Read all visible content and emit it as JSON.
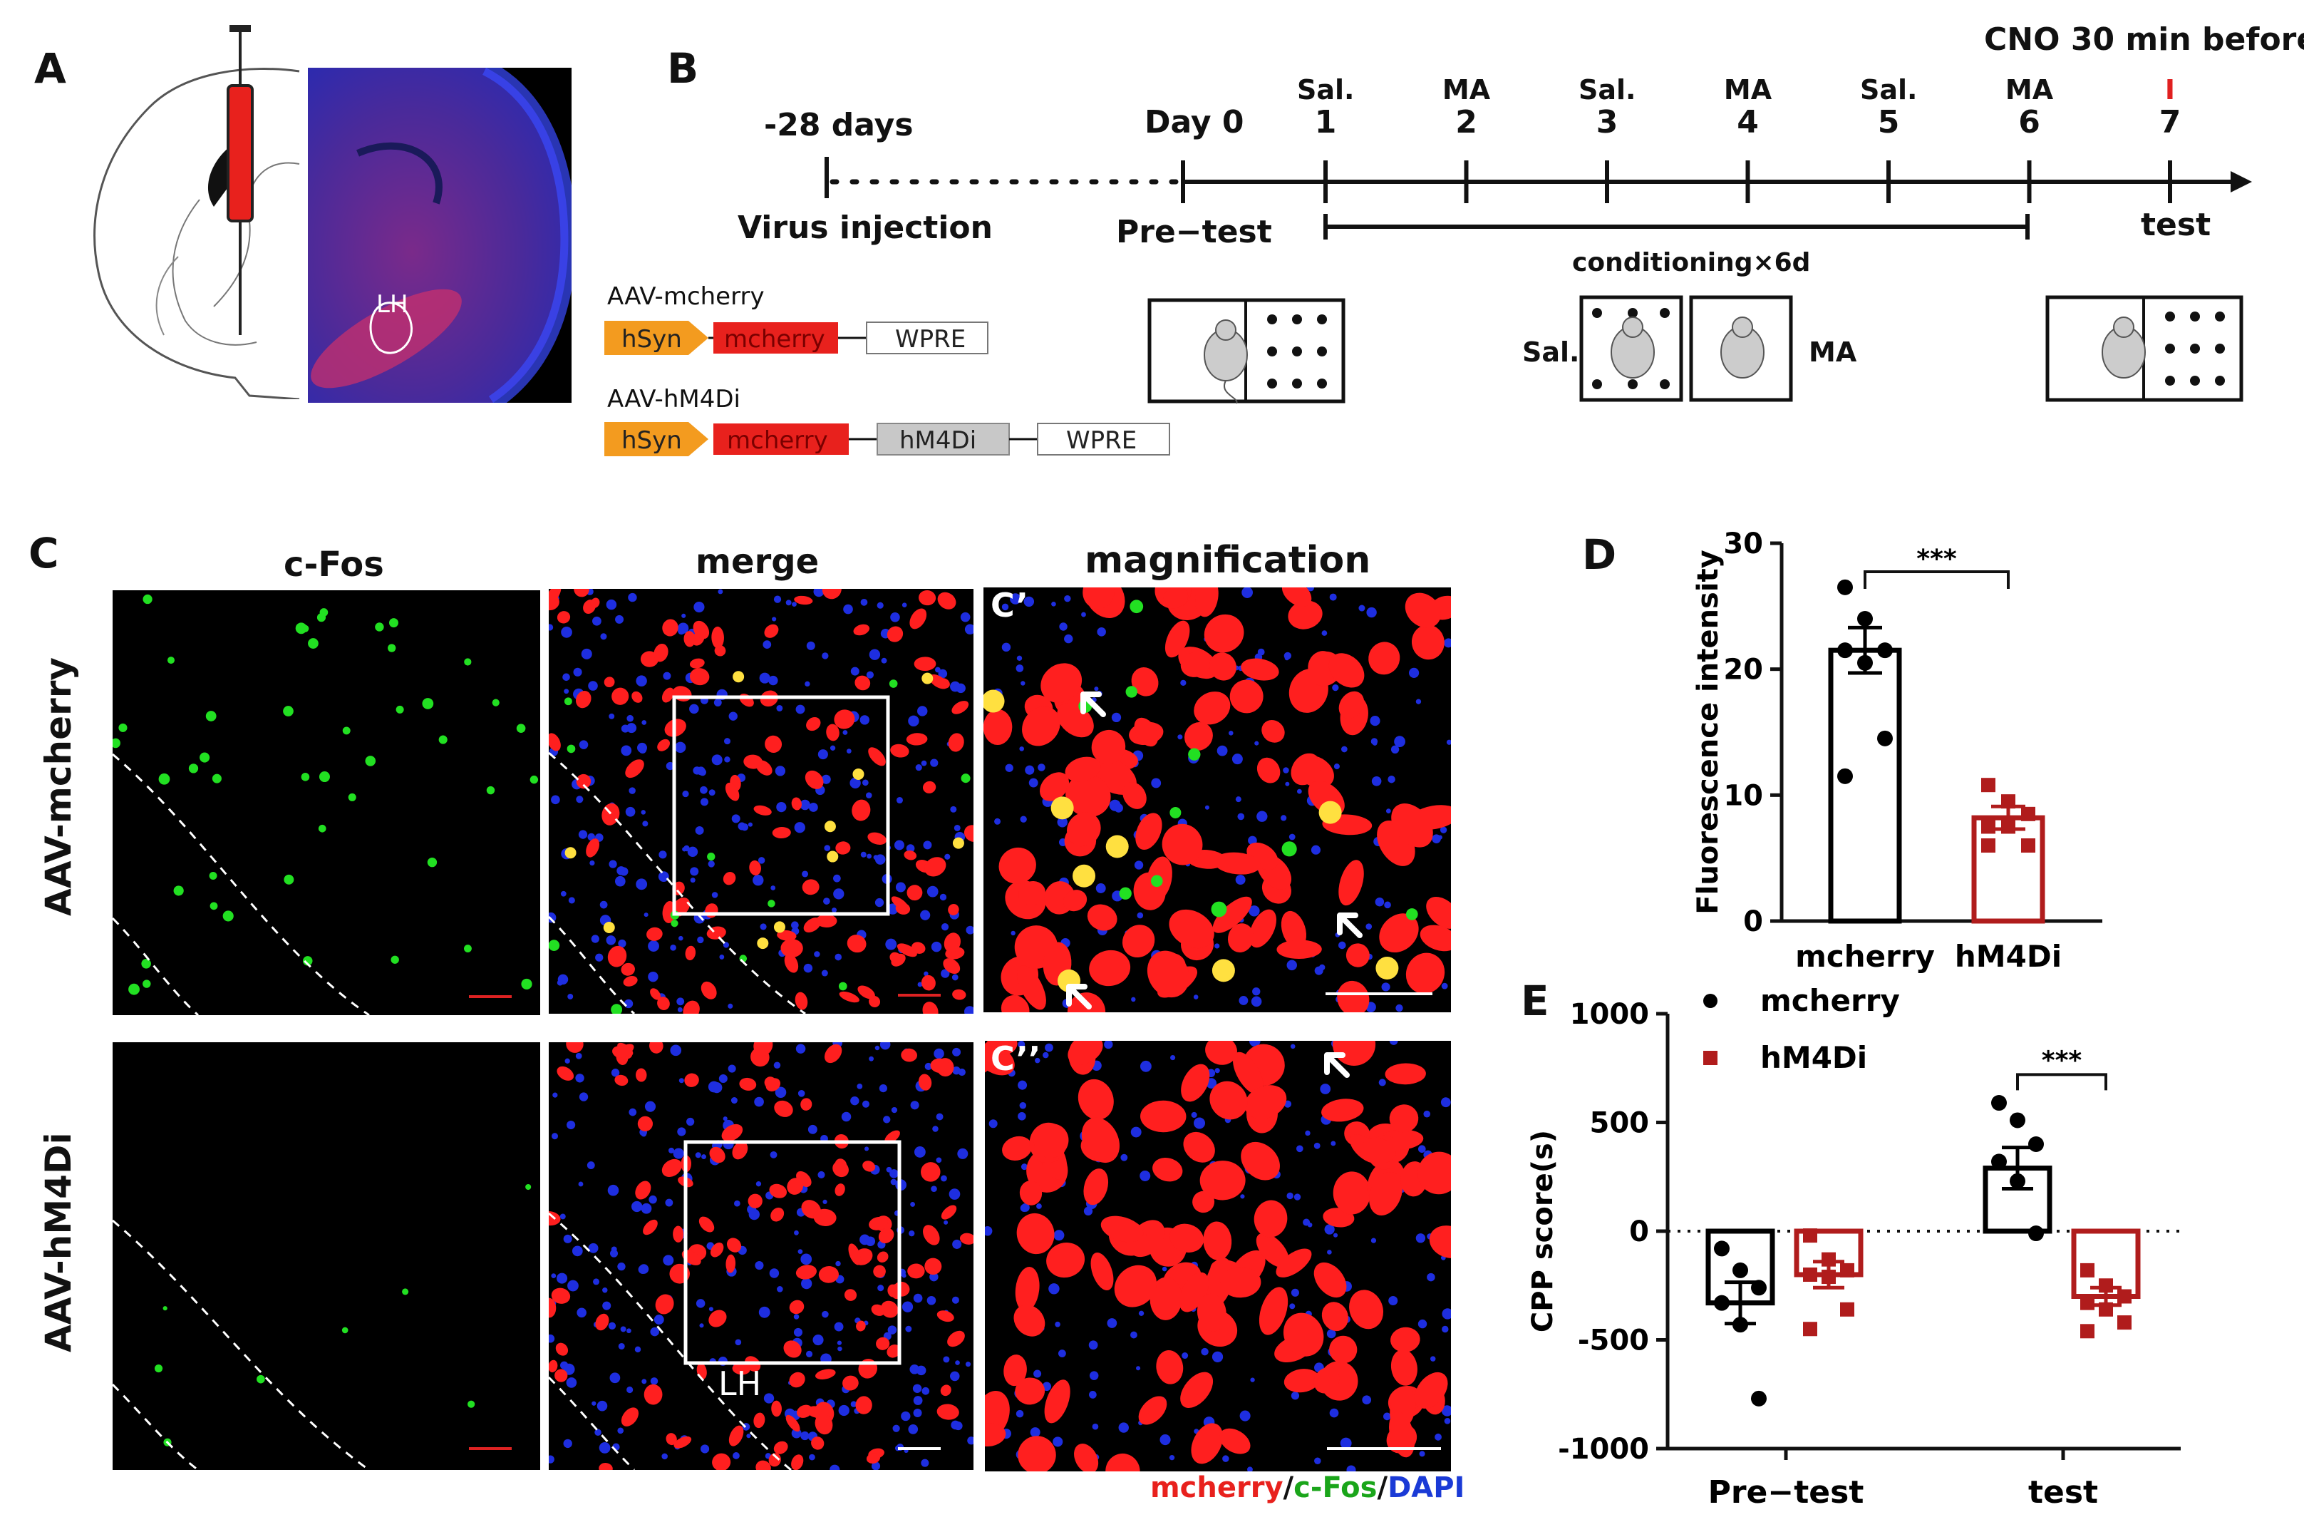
{
  "panels": {
    "A": "A",
    "B": "B",
    "C": "C",
    "D": "D",
    "E": "E"
  },
  "panelA": {
    "region_label": "LH"
  },
  "panelB": {
    "cno_note": "CNO 30 min before",
    "minus28": "-28 days",
    "virus_injection": "Virus injection",
    "day0": "Day 0",
    "pretest": "Pre−test",
    "test": "test",
    "conditioning": "conditioning×6d",
    "days": [
      {
        "treat": "Sal.",
        "num": "1"
      },
      {
        "treat": "MA",
        "num": "2"
      },
      {
        "treat": "Sal.",
        "num": "3"
      },
      {
        "treat": "MA",
        "num": "4"
      },
      {
        "treat": "Sal.",
        "num": "5"
      },
      {
        "treat": "MA",
        "num": "6"
      },
      {
        "treat": "",
        "num": "7"
      }
    ],
    "cno_mark": "I",
    "sal_box": "Sal.",
    "ma_box": "MA",
    "constructs": [
      {
        "name": "AAV-mcherry",
        "parts": [
          "hSyn",
          "mcherry",
          "WPRE"
        ]
      },
      {
        "name": "AAV-hM4Di",
        "parts": [
          "hSyn",
          "mcherry",
          "hM4Di",
          "WPRE"
        ]
      }
    ],
    "colors": {
      "promoter": "#f39b1f",
      "mcherry": "#e8211d",
      "hm4di": "#c8c8c8",
      "cno": "#e02020"
    }
  },
  "panelC": {
    "col_titles": [
      "c-Fos",
      "merge",
      "magnification"
    ],
    "row_labels": [
      "AAV-mcherry",
      "AAV-hM4Di"
    ],
    "inset_labels": [
      "C’",
      "C’’"
    ],
    "lh_label": "LH",
    "legend": [
      {
        "text": "mcherry",
        "color": "#e8211d"
      },
      {
        "text": "/",
        "color": "#111111"
      },
      {
        "text": "c-Fos",
        "color": "#1aa51a"
      },
      {
        "text": "/",
        "color": "#111111"
      },
      {
        "text": "DAPI",
        "color": "#1a3ad6"
      }
    ]
  },
  "chart_data": [
    {
      "panel": "D",
      "type": "bar",
      "categories": [
        "mcherry",
        "hM4Di"
      ],
      "ylabel": "Fluorescence intensity",
      "ylim": [
        0,
        30
      ],
      "yticks": [
        0,
        10,
        20,
        30
      ],
      "series": [
        {
          "values": [
            21.5,
            8.2
          ],
          "sem": [
            1.8,
            0.9
          ],
          "points": [
            [
              26.5,
              24,
              21.5,
              21.5,
              20.5,
              14.5,
              11.5
            ],
            [
              10.8,
              9.5,
              8.5,
              7.5,
              7.5,
              6,
              6
            ]
          ]
        }
      ],
      "significance": "***",
      "colors": [
        "#000000",
        "#b01c1c"
      ]
    },
    {
      "panel": "E",
      "type": "bar",
      "categories": [
        "Pre−test",
        "test"
      ],
      "ylabel": "CPP score(s)",
      "ylim": [
        -1000,
        1000
      ],
      "yticks": [
        -1000,
        -500,
        0,
        500,
        1000
      ],
      "series": [
        {
          "name": "mcherry",
          "values": [
            -330,
            290
          ],
          "sem": [
            95,
            95
          ],
          "points": [
            [
              -80,
              -180,
              -260,
              -330,
              -430,
              -770
            ],
            [
              590,
              510,
              400,
              320,
              230,
              -10
            ]
          ]
        },
        {
          "name": "hM4Di",
          "values": [
            -200,
            -300
          ],
          "sem": [
            60,
            40
          ],
          "points": [
            [
              -20,
              -130,
              -180,
              -200,
              -210,
              -360,
              -450
            ],
            [
              -180,
              -250,
              -300,
              -330,
              -360,
              -420,
              -460
            ]
          ]
        }
      ],
      "significance": "***",
      "colors": [
        "#000000",
        "#b01c1c"
      ]
    }
  ]
}
